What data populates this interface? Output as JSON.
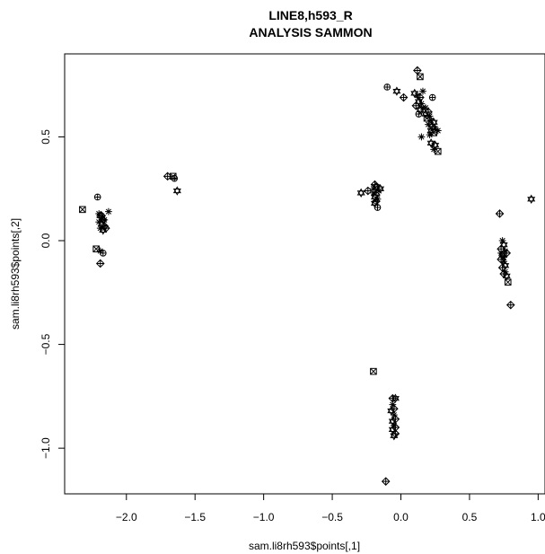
{
  "chart_data": {
    "type": "scatter",
    "title": "LINE8,h593_R",
    "subtitle": "ANALYSIS SAMMON",
    "xlabel": "sam.li8rh593$points[,1]",
    "ylabel": "sam.li8rh593$points[,2]",
    "xlim": [
      -2.45,
      1.05
    ],
    "ylim": [
      -1.22,
      0.9
    ],
    "x_ticks": [
      {
        "value": -2.0,
        "label": "−2.0"
      },
      {
        "value": -1.5,
        "label": "−1.5"
      },
      {
        "value": -1.0,
        "label": "−1.0"
      },
      {
        "value": -0.5,
        "label": "−0.5"
      },
      {
        "value": 0.0,
        "label": "0.0"
      },
      {
        "value": 0.5,
        "label": "0.5"
      },
      {
        "value": 1.0,
        "label": "1.0"
      }
    ],
    "y_ticks": [
      {
        "value": -1.0,
        "label": "−1.0"
      },
      {
        "value": -0.5,
        "label": "−0.5"
      },
      {
        "value": 0.0,
        "label": "0.0"
      },
      {
        "value": 0.5,
        "label": "0.5"
      }
    ],
    "grid": false,
    "legend": "none",
    "marker_shapes": [
      "circle-plus",
      "diamond-plus",
      "square-x",
      "star",
      "hexagram"
    ],
    "series": [
      {
        "points": [
          {
            "x": -2.32,
            "y": 0.15,
            "m": "square-x"
          },
          {
            "x": -2.21,
            "y": 0.21,
            "m": "circle-plus"
          },
          {
            "x": -2.2,
            "y": 0.13,
            "m": "star"
          },
          {
            "x": -2.19,
            "y": 0.12,
            "m": "hexagram"
          },
          {
            "x": -2.18,
            "y": 0.11,
            "m": "star"
          },
          {
            "x": -2.17,
            "y": 0.1,
            "m": "diamond-plus"
          },
          {
            "x": -2.2,
            "y": 0.09,
            "m": "star"
          },
          {
            "x": -2.18,
            "y": 0.08,
            "m": "hexagram"
          },
          {
            "x": -2.16,
            "y": 0.07,
            "m": "diamond-plus"
          },
          {
            "x": -2.19,
            "y": 0.06,
            "m": "star"
          },
          {
            "x": -2.17,
            "y": 0.05,
            "m": "hexagram"
          },
          {
            "x": -2.15,
            "y": 0.06,
            "m": "diamond-plus"
          },
          {
            "x": -2.18,
            "y": 0.12,
            "m": "diamond-plus"
          },
          {
            "x": -2.16,
            "y": 0.1,
            "m": "star"
          },
          {
            "x": -2.13,
            "y": 0.14,
            "m": "star"
          },
          {
            "x": -2.22,
            "y": -0.04,
            "m": "square-x"
          },
          {
            "x": -2.19,
            "y": -0.05,
            "m": "star"
          },
          {
            "x": -2.17,
            "y": -0.06,
            "m": "circle-plus"
          },
          {
            "x": -2.19,
            "y": -0.11,
            "m": "diamond-plus"
          },
          {
            "x": -1.7,
            "y": 0.31,
            "m": "diamond-plus"
          },
          {
            "x": -1.66,
            "y": 0.31,
            "m": "square-x"
          },
          {
            "x": -1.65,
            "y": 0.3,
            "m": "circle-plus"
          },
          {
            "x": -1.63,
            "y": 0.24,
            "m": "hexagram"
          },
          {
            "x": -0.29,
            "y": 0.23,
            "m": "hexagram"
          },
          {
            "x": -0.24,
            "y": 0.24,
            "m": "diamond-plus"
          },
          {
            "x": -0.2,
            "y": 0.25,
            "m": "star"
          },
          {
            "x": -0.19,
            "y": 0.27,
            "m": "diamond-plus"
          },
          {
            "x": -0.18,
            "y": 0.26,
            "m": "hexagram"
          },
          {
            "x": -0.2,
            "y": 0.23,
            "m": "star"
          },
          {
            "x": -0.18,
            "y": 0.22,
            "m": "diamond-plus"
          },
          {
            "x": -0.19,
            "y": 0.21,
            "m": "hexagram"
          },
          {
            "x": -0.17,
            "y": 0.2,
            "m": "star"
          },
          {
            "x": -0.18,
            "y": 0.19,
            "m": "diamond-plus"
          },
          {
            "x": -0.19,
            "y": 0.18,
            "m": "hexagram"
          },
          {
            "x": -0.16,
            "y": 0.24,
            "m": "star"
          },
          {
            "x": -0.15,
            "y": 0.25,
            "m": "hexagram"
          },
          {
            "x": -0.17,
            "y": 0.16,
            "m": "circle-plus"
          },
          {
            "x": -0.1,
            "y": 0.74,
            "m": "circle-plus"
          },
          {
            "x": -0.03,
            "y": 0.72,
            "m": "hexagram"
          },
          {
            "x": 0.02,
            "y": 0.69,
            "m": "diamond-plus"
          },
          {
            "x": 0.12,
            "y": 0.82,
            "m": "diamond-plus"
          },
          {
            "x": 0.14,
            "y": 0.79,
            "m": "square-x"
          },
          {
            "x": 0.1,
            "y": 0.71,
            "m": "hexagram"
          },
          {
            "x": 0.12,
            "y": 0.7,
            "m": "star"
          },
          {
            "x": 0.14,
            "y": 0.69,
            "m": "diamond-plus"
          },
          {
            "x": 0.13,
            "y": 0.67,
            "m": "hexagram"
          },
          {
            "x": 0.15,
            "y": 0.66,
            "m": "star"
          },
          {
            "x": 0.11,
            "y": 0.65,
            "m": "diamond-plus"
          },
          {
            "x": 0.16,
            "y": 0.64,
            "m": "star"
          },
          {
            "x": 0.14,
            "y": 0.63,
            "m": "hexagram"
          },
          {
            "x": 0.18,
            "y": 0.64,
            "m": "star"
          },
          {
            "x": 0.2,
            "y": 0.62,
            "m": "diamond-plus"
          },
          {
            "x": 0.18,
            "y": 0.61,
            "m": "hexagram"
          },
          {
            "x": 0.21,
            "y": 0.6,
            "m": "star"
          },
          {
            "x": 0.19,
            "y": 0.59,
            "m": "square-x"
          },
          {
            "x": 0.22,
            "y": 0.58,
            "m": "star"
          },
          {
            "x": 0.24,
            "y": 0.57,
            "m": "hexagram"
          },
          {
            "x": 0.2,
            "y": 0.56,
            "m": "star"
          },
          {
            "x": 0.23,
            "y": 0.55,
            "m": "diamond-plus"
          },
          {
            "x": 0.25,
            "y": 0.54,
            "m": "star"
          },
          {
            "x": 0.22,
            "y": 0.53,
            "m": "hexagram"
          },
          {
            "x": 0.24,
            "y": 0.52,
            "m": "square-x"
          },
          {
            "x": 0.21,
            "y": 0.51,
            "m": "star"
          },
          {
            "x": 0.15,
            "y": 0.5,
            "m": "star"
          },
          {
            "x": 0.23,
            "y": 0.69,
            "m": "circle-plus"
          },
          {
            "x": 0.13,
            "y": 0.61,
            "m": "circle-plus"
          },
          {
            "x": 0.22,
            "y": 0.47,
            "m": "hexagram"
          },
          {
            "x": 0.25,
            "y": 0.46,
            "m": "hexagram"
          },
          {
            "x": 0.24,
            "y": 0.44,
            "m": "star"
          },
          {
            "x": 0.27,
            "y": 0.43,
            "m": "square-x"
          },
          {
            "x": 0.27,
            "y": 0.53,
            "m": "star"
          },
          {
            "x": 0.16,
            "y": 0.72,
            "m": "star"
          },
          {
            "x": -0.11,
            "y": -1.16,
            "m": "diamond-plus"
          },
          {
            "x": -0.2,
            "y": -0.63,
            "m": "square-x"
          },
          {
            "x": -0.06,
            "y": -0.76,
            "m": "diamond-plus"
          },
          {
            "x": -0.04,
            "y": -0.76,
            "m": "hexagram"
          },
          {
            "x": -0.06,
            "y": -0.79,
            "m": "star"
          },
          {
            "x": -0.05,
            "y": -0.81,
            "m": "diamond-plus"
          },
          {
            "x": -0.07,
            "y": -0.82,
            "m": "hexagram"
          },
          {
            "x": -0.05,
            "y": -0.84,
            "m": "star"
          },
          {
            "x": -0.04,
            "y": -0.86,
            "m": "diamond-plus"
          },
          {
            "x": -0.06,
            "y": -0.87,
            "m": "hexagram"
          },
          {
            "x": -0.05,
            "y": -0.89,
            "m": "star"
          },
          {
            "x": -0.04,
            "y": -0.9,
            "m": "diamond-plus"
          },
          {
            "x": -0.06,
            "y": -0.91,
            "m": "hexagram"
          },
          {
            "x": -0.04,
            "y": -0.93,
            "m": "diamond-plus"
          },
          {
            "x": -0.05,
            "y": -0.94,
            "m": "hexagram"
          },
          {
            "x": 0.72,
            "y": 0.13,
            "m": "diamond-plus"
          },
          {
            "x": 0.95,
            "y": 0.2,
            "m": "hexagram"
          },
          {
            "x": 0.74,
            "y": 0.0,
            "m": "star"
          },
          {
            "x": 0.75,
            "y": -0.02,
            "m": "hexagram"
          },
          {
            "x": 0.73,
            "y": -0.04,
            "m": "diamond-plus"
          },
          {
            "x": 0.76,
            "y": -0.05,
            "m": "star"
          },
          {
            "x": 0.74,
            "y": -0.07,
            "m": "hexagram"
          },
          {
            "x": 0.73,
            "y": -0.09,
            "m": "diamond-plus"
          },
          {
            "x": 0.75,
            "y": -0.1,
            "m": "star"
          },
          {
            "x": 0.76,
            "y": -0.12,
            "m": "hexagram"
          },
          {
            "x": 0.74,
            "y": -0.13,
            "m": "diamond-plus"
          },
          {
            "x": 0.76,
            "y": -0.15,
            "m": "star"
          },
          {
            "x": 0.75,
            "y": -0.16,
            "m": "diamond-plus"
          },
          {
            "x": 0.77,
            "y": -0.17,
            "m": "hexagram"
          },
          {
            "x": 0.75,
            "y": -0.08,
            "m": "star"
          },
          {
            "x": 0.77,
            "y": -0.06,
            "m": "diamond-plus"
          },
          {
            "x": 0.73,
            "y": -0.06,
            "m": "star"
          },
          {
            "x": 0.78,
            "y": -0.2,
            "m": "square-x"
          },
          {
            "x": 0.8,
            "y": -0.31,
            "m": "diamond-plus"
          }
        ]
      }
    ]
  }
}
